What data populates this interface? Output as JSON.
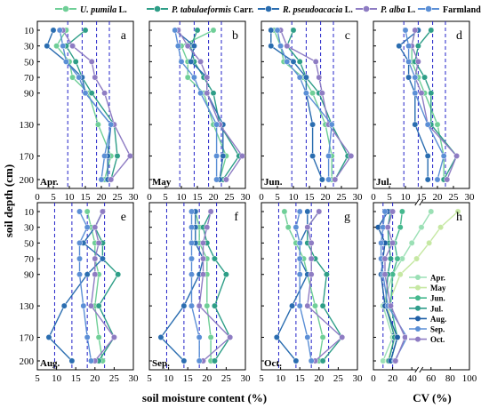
{
  "legend": {
    "items": [
      {
        "label": "U. pumila",
        "suffix": " L.",
        "color": "#6fcf97",
        "italic": true
      },
      {
        "label": "P. tabulaeformis",
        "suffix": " Carr.",
        "color": "#2e9e87",
        "italic": true
      },
      {
        "label": "R. pseudoacacia",
        "suffix": " L.",
        "color": "#2a6db0",
        "italic": true
      },
      {
        "label": "P. alba",
        "suffix": " L.",
        "color": "#8e7cc3",
        "italic": true
      },
      {
        "label": "Farmland",
        "suffix": "",
        "color": "#5b8fd6",
        "italic": false
      }
    ]
  },
  "chart_data": [
    {
      "type": "line",
      "panel": "a",
      "month": "Apr.",
      "y": [
        10,
        30,
        50,
        70,
        90,
        130,
        170,
        200
      ],
      "xlim": [
        0,
        30
      ],
      "xticks": [
        0,
        5,
        10,
        15,
        20,
        25,
        30
      ],
      "dashed_x": [
        9.5,
        14,
        18.5,
        22.5
      ],
      "series": [
        {
          "name": "U. pumila L.",
          "values": [
            9,
            6,
            10,
            11,
            16,
            19,
            23,
            21
          ]
        },
        {
          "name": "P. tabulaeformis Carr.",
          "values": [
            15,
            9,
            12,
            14,
            17,
            24,
            25,
            23
          ]
        },
        {
          "name": "R. pseudoacacia L.",
          "values": [
            5,
            3,
            9,
            14,
            15,
            23,
            22,
            22
          ]
        },
        {
          "name": "P. alba L.",
          "values": [
            8,
            11,
            17,
            18,
            21,
            24,
            29,
            23
          ]
        },
        {
          "name": "Farmland",
          "values": [
            7,
            8,
            9,
            13,
            15,
            23,
            21,
            20
          ]
        }
      ]
    },
    {
      "type": "line",
      "panel": "b",
      "month": "May",
      "y": [
        10,
        30,
        50,
        70,
        90,
        130,
        170,
        200
      ],
      "xlim": [
        0,
        30
      ],
      "xticks": [
        0,
        5,
        10,
        15,
        20,
        25,
        30
      ],
      "dashed_x": [
        9.5,
        14,
        18.5,
        22.5
      ],
      "series": [
        {
          "name": "U. pumila L.",
          "values": [
            20,
            10,
            12,
            12,
            17,
            20,
            24,
            22
          ]
        },
        {
          "name": "P. tabulaeformis Carr.",
          "values": [
            15,
            13,
            14,
            17,
            20,
            22,
            28,
            23
          ]
        },
        {
          "name": "R. pseudoacacia L.",
          "values": [
            8,
            14,
            13,
            18,
            18,
            23,
            23,
            22
          ]
        },
        {
          "name": "P. alba L.",
          "values": [
            9,
            12,
            16,
            18,
            18,
            22,
            29,
            24
          ]
        },
        {
          "name": "Farmland",
          "values": [
            8,
            9,
            10,
            14,
            16,
            21,
            21,
            21
          ]
        }
      ]
    },
    {
      "type": "line",
      "panel": "c",
      "month": "Jun.",
      "y": [
        10,
        30,
        50,
        70,
        90,
        130,
        170,
        200
      ],
      "xlim": [
        0,
        30
      ],
      "xticks": [
        0,
        5,
        10,
        15,
        20,
        25,
        30
      ],
      "dashed_x": [
        9.5,
        14,
        18.5,
        22.5
      ],
      "series": [
        {
          "name": "U. pumila L.",
          "values": [
            4,
            6,
            7,
            13,
            16,
            20,
            22,
            22
          ]
        },
        {
          "name": "P. tabulaeformis Carr.",
          "values": [
            10,
            8,
            12,
            14,
            18,
            22,
            27,
            23
          ]
        },
        {
          "name": "R. pseudoacacia L.",
          "values": [
            3,
            3,
            10,
            14,
            14,
            16,
            16,
            19
          ]
        },
        {
          "name": "P. alba L.",
          "values": [
            6,
            8,
            17,
            18,
            19,
            21,
            28,
            23
          ]
        },
        {
          "name": "Farmland",
          "values": [
            5,
            6,
            8,
            12,
            14,
            22,
            21,
            21
          ]
        }
      ]
    },
    {
      "type": "line",
      "panel": "d",
      "month": "Jul.",
      "y": [
        10,
        30,
        50,
        70,
        90,
        130,
        170,
        200
      ],
      "xlim": [
        0,
        30
      ],
      "xticks": [
        0,
        5,
        10,
        15,
        20,
        25,
        30
      ],
      "dashed_x": [
        9.5,
        14,
        18.5,
        22.5
      ],
      "series": [
        {
          "name": "U. pumila L.",
          "values": [
            13,
            12,
            12,
            14,
            16,
            20,
            22,
            22
          ]
        },
        {
          "name": "P. tabulaeformis Carr.",
          "values": [
            18,
            14,
            13,
            16,
            18,
            18,
            26,
            22
          ]
        },
        {
          "name": "R. pseudoacacia L.",
          "values": [
            14,
            8,
            11,
            11,
            13,
            13,
            17,
            17
          ]
        },
        {
          "name": "P. alba L.",
          "values": [
            13,
            12,
            14,
            13,
            15,
            17,
            26,
            23
          ]
        },
        {
          "name": "Farmland",
          "values": [
            10,
            11,
            11,
            13,
            13,
            17,
            22,
            20
          ]
        }
      ]
    },
    {
      "type": "line",
      "panel": "e",
      "month": "Aug.",
      "y": [
        10,
        30,
        50,
        70,
        90,
        130,
        170,
        200
      ],
      "xlim": [
        5,
        30
      ],
      "xticks": [
        5,
        10,
        15,
        20,
        25,
        30
      ],
      "dashed_x": [
        9.5,
        14,
        18,
        22.5
      ],
      "series": [
        {
          "name": "U. pumila L.",
          "values": [
            18,
            19,
            20,
            20,
            21,
            20,
            21,
            22
          ]
        },
        {
          "name": "P. tabulaeformis Carr.",
          "values": [
            22,
            20,
            22,
            22,
            26,
            21,
            25,
            21
          ]
        },
        {
          "name": "R. pseudoacacia L.",
          "values": [
            22,
            20,
            17,
            22,
            18,
            12,
            8,
            14
          ]
        },
        {
          "name": "P. alba L.",
          "values": [
            22,
            20,
            21,
            20,
            20,
            19,
            25,
            20
          ]
        },
        {
          "name": "Farmland",
          "values": [
            16,
            18,
            16,
            16,
            16,
            17,
            18,
            19
          ]
        }
      ]
    },
    {
      "type": "line",
      "panel": "f",
      "month": "Sep.",
      "y": [
        10,
        30,
        50,
        70,
        90,
        130,
        170,
        200
      ],
      "xlim": [
        5,
        30
      ],
      "xticks": [
        5,
        10,
        15,
        20,
        25,
        30
      ],
      "dashed_x": [
        9.5,
        14,
        18,
        22.5
      ],
      "series": [
        {
          "name": "U. pumila L.",
          "values": [
            17,
            18,
            18,
            20,
            20,
            20,
            21,
            21
          ]
        },
        {
          "name": "P. tabulaeformis Carr.",
          "values": [
            21,
            19,
            20,
            22,
            25,
            22,
            26,
            22
          ]
        },
        {
          "name": "R. pseudoacacia L.",
          "values": [
            17,
            17,
            17,
            19,
            18,
            14,
            8,
            14
          ]
        },
        {
          "name": "P. alba L.",
          "values": [
            21,
            20,
            19,
            19,
            19,
            18,
            26,
            19
          ]
        },
        {
          "name": "Farmland",
          "values": [
            16,
            16,
            16,
            16,
            16,
            16,
            18,
            18
          ]
        }
      ]
    },
    {
      "type": "line",
      "panel": "g",
      "month": "Oct.",
      "y": [
        10,
        30,
        50,
        70,
        90,
        130,
        170,
        200
      ],
      "xlim": [
        5,
        30
      ],
      "xticks": [
        5,
        10,
        15,
        20,
        25,
        30
      ],
      "dashed_x": [
        9.5,
        14,
        18,
        22.5
      ],
      "series": [
        {
          "name": "U. pumila L.",
          "values": [
            11,
            12,
            14,
            16,
            17,
            19,
            21,
            20
          ]
        },
        {
          "name": "P. tabulaeformis Carr.",
          "values": [
            20,
            17,
            17,
            19,
            22,
            21,
            26,
            21
          ]
        },
        {
          "name": "R. pseudoacacia L.",
          "values": [
            17,
            17,
            15,
            15,
            17,
            13,
            9,
            14
          ]
        },
        {
          "name": "P. alba L.",
          "values": [
            20,
            17,
            18,
            18,
            18,
            17,
            26,
            19
          ]
        },
        {
          "name": "Farmland",
          "values": [
            15,
            14,
            15,
            15,
            15,
            15,
            17,
            18
          ]
        }
      ]
    },
    {
      "type": "line",
      "panel": "h",
      "y": [
        10,
        30,
        50,
        70,
        90,
        130,
        170,
        200
      ],
      "xlim": [
        0,
        100
      ],
      "xticks": [
        0,
        20,
        40,
        60,
        80,
        100
      ],
      "xbreak": true,
      "dashed_x": [
        10,
        20
      ],
      "series": [
        {
          "name": "Apr.",
          "values": [
            60,
            50,
            40,
            30,
            20,
            10,
            20,
            10
          ],
          "color": "#9be0b5"
        },
        {
          "name": "May",
          "values": [
            88,
            70,
            58,
            45,
            28,
            15,
            22,
            15
          ],
          "color": "#c6e8a3"
        },
        {
          "name": "Jun.",
          "values": [
            30,
            28,
            22,
            25,
            20,
            18,
            25,
            18
          ],
          "color": "#45b88e"
        },
        {
          "name": "Jul.",
          "values": [
            18,
            15,
            16,
            18,
            15,
            13,
            22,
            16
          ],
          "color": "#2f9c8b"
        },
        {
          "name": "Aug.",
          "values": [
            15,
            5,
            12,
            10,
            8,
            12,
            25,
            18
          ],
          "color": "#1f5fa6"
        },
        {
          "name": "Sep.",
          "values": [
            12,
            10,
            8,
            8,
            10,
            15,
            35,
            22
          ],
          "color": "#5b8fd6"
        },
        {
          "name": "Oct.",
          "values": [
            20,
            15,
            20,
            12,
            12,
            18,
            33,
            23
          ],
          "color": "#8e7cc3"
        }
      ]
    }
  ],
  "axes": {
    "ylabel": "soil depth (cm)",
    "xlabel_left": "soil moisture content (%)",
    "xlabel_right": "CV (%)",
    "yticks": [
      "10",
      "30",
      "50",
      "70",
      "90",
      "130",
      "170",
      "200"
    ]
  },
  "series_colors": {
    "U. pumila L.": "#6fcf97",
    "P. tabulaeformis Carr.": "#2e9e87",
    "R. pseudoacacia L.": "#2a6db0",
    "P. alba L.": "#8e7cc3",
    "Farmland": "#5b8fd6"
  }
}
